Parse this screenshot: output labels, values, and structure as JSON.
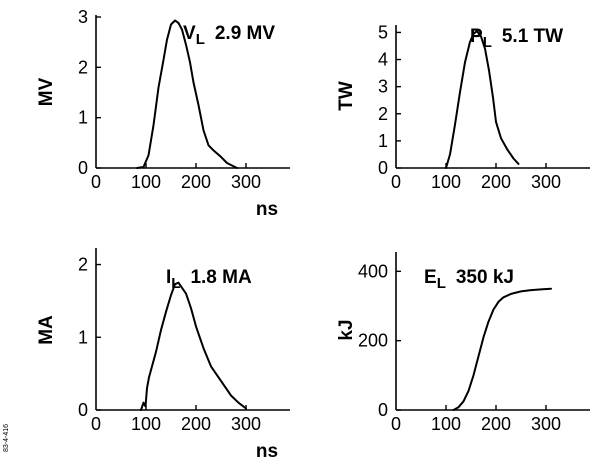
{
  "side_code": "83-4-416",
  "chart_data": [
    {
      "type": "line",
      "xlabel": "ns",
      "ylabel": "MV",
      "xlim": [
        0,
        400
      ],
      "ylim": [
        0,
        3
      ],
      "xticks": [
        0,
        100,
        200,
        300
      ],
      "yticks": [
        0,
        1,
        2,
        3
      ],
      "annotation": {
        "symbol": "V",
        "sub": "L",
        "value": "2.9 MV"
      },
      "series": [
        {
          "x": [
            82,
            95,
            105,
            115,
            125,
            135,
            142,
            150,
            158,
            165,
            172,
            180,
            188,
            195,
            205,
            215,
            225,
            235,
            250,
            262,
            272,
            282
          ],
          "y": [
            0,
            0.02,
            0.25,
            0.85,
            1.6,
            2.15,
            2.55,
            2.85,
            2.93,
            2.88,
            2.75,
            2.45,
            2.1,
            1.7,
            1.25,
            0.75,
            0.45,
            0.35,
            0.22,
            0.1,
            0.05,
            0
          ]
        }
      ]
    },
    {
      "type": "line",
      "xlabel": "ns",
      "ylabel": "TW",
      "xlim": [
        0,
        400
      ],
      "ylim": [
        0,
        5.2
      ],
      "xticks": [
        0,
        100,
        200,
        300
      ],
      "yticks": [
        0,
        1,
        2,
        3,
        4,
        5
      ],
      "annotation": {
        "symbol": "P",
        "sub": "L",
        "value": "5.1 TW"
      },
      "series": [
        {
          "x": [
            100,
            108,
            118,
            128,
            138,
            148,
            155,
            162,
            170,
            178,
            186,
            194,
            200,
            210,
            222,
            235,
            245
          ],
          "y": [
            0,
            0.5,
            1.6,
            2.8,
            3.9,
            4.65,
            4.95,
            5.05,
            4.85,
            4.4,
            3.6,
            2.6,
            1.7,
            1.1,
            0.7,
            0.35,
            0.15
          ]
        }
      ]
    },
    {
      "type": "line",
      "xlabel": "ns",
      "ylabel": "MA",
      "xlim": [
        0,
        400
      ],
      "ylim": [
        0,
        2.2
      ],
      "xticks": [
        0,
        100,
        200,
        300
      ],
      "yticks": [
        0,
        1,
        2
      ],
      "annotation": {
        "symbol": "I",
        "sub": "L",
        "value": "1.8 MA"
      },
      "series": [
        {
          "x": [
            90,
            95,
            99,
            102,
            106,
            110,
            120,
            130,
            140,
            150,
            158,
            165,
            172,
            180,
            190,
            200,
            215,
            230,
            250,
            270,
            285,
            300
          ],
          "y": [
            0,
            0.1,
            0.05,
            0.3,
            0.45,
            0.55,
            0.8,
            1.1,
            1.35,
            1.58,
            1.73,
            1.75,
            1.68,
            1.6,
            1.4,
            1.15,
            0.85,
            0.6,
            0.4,
            0.2,
            0.1,
            0.02
          ]
        }
      ]
    },
    {
      "type": "line",
      "xlabel": "ns",
      "ylabel": "kJ",
      "xlim": [
        0,
        400
      ],
      "ylim": [
        0,
        450
      ],
      "xticks": [
        0,
        100,
        200,
        300
      ],
      "yticks": [
        0,
        200,
        400
      ],
      "annotation": {
        "symbol": "E",
        "sub": "L",
        "value": "350 kJ"
      },
      "series": [
        {
          "x": [
            115,
            125,
            135,
            145,
            155,
            165,
            175,
            185,
            195,
            205,
            215,
            230,
            250,
            270,
            290,
            310
          ],
          "y": [
            0,
            8,
            25,
            55,
            100,
            155,
            210,
            255,
            290,
            312,
            325,
            335,
            342,
            346,
            348,
            350
          ]
        }
      ]
    }
  ]
}
